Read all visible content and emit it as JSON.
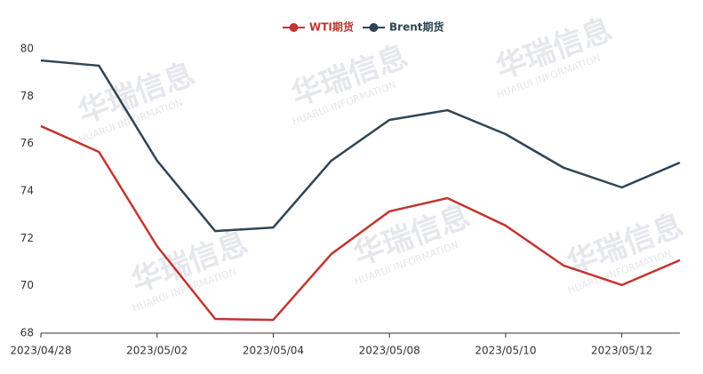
{
  "chart_data": {
    "type": "line",
    "categories": [
      "2023/04/28",
      null,
      "2023/05/02",
      null,
      "2023/05/04",
      null,
      "2023/05/08",
      null,
      "2023/05/10",
      null,
      "2023/05/12",
      null
    ],
    "series": [
      {
        "name": "WTI期货",
        "color": "#c23531",
        "values": [
          76.74,
          75.65,
          71.67,
          68.6,
          68.56,
          71.34,
          73.14,
          73.7,
          72.54,
          70.85,
          70.03,
          71.08
        ]
      },
      {
        "name": "Brent期货",
        "color": "#2f4554",
        "values": [
          79.51,
          79.29,
          75.28,
          72.31,
          72.46,
          75.28,
          77.0,
          77.41,
          76.4,
          74.98,
          74.15,
          75.2
        ]
      }
    ],
    "ylim": [
      68,
      80
    ],
    "yticks": [
      68,
      70,
      72,
      74,
      76,
      78,
      80
    ],
    "grid": false,
    "watermark": "华瑞信息",
    "watermark_sub": "HUARUI INFORMATION"
  }
}
